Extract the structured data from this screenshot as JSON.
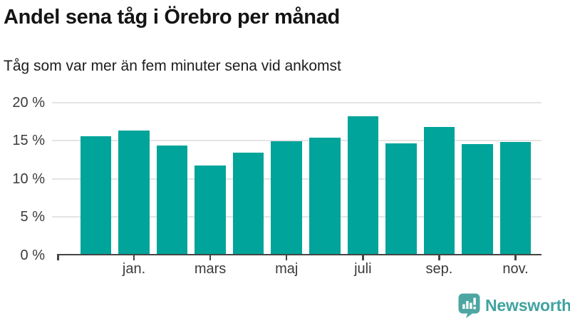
{
  "header": {
    "title": "Andel sena tåg i Örebro per månad",
    "subtitle": "Tåg som var mer än fem minuter sena vid ankomst"
  },
  "brand": {
    "name": "Newsworthy",
    "icon_color": "#4ea6a2",
    "text_color": "#3fa3a0"
  },
  "chart_data": {
    "type": "bar",
    "title": "Andel sena tåg i Örebro per månad",
    "subtitle": "Tåg som var mer än fem minuter sena vid ankomst",
    "values": [
      15.6,
      16.3,
      14.3,
      11.7,
      13.4,
      14.9,
      15.4,
      18.2,
      14.6,
      16.8,
      14.5,
      14.8
    ],
    "x_tick_labels": [
      "jan.",
      "mars",
      "maj",
      "juli",
      "sep.",
      "nov."
    ],
    "x_tick_bar_indices": [
      1,
      3,
      5,
      7,
      9,
      11
    ],
    "y_tick_labels": [
      "0 %",
      "5 %",
      "10 %",
      "15 %",
      "20 %"
    ],
    "y_tick_values": [
      0,
      5,
      10,
      15,
      20
    ],
    "ylim": [
      0,
      20
    ],
    "unit": "%",
    "grid": "horizontal",
    "legend": "none",
    "bar_color": "#00a49a"
  }
}
